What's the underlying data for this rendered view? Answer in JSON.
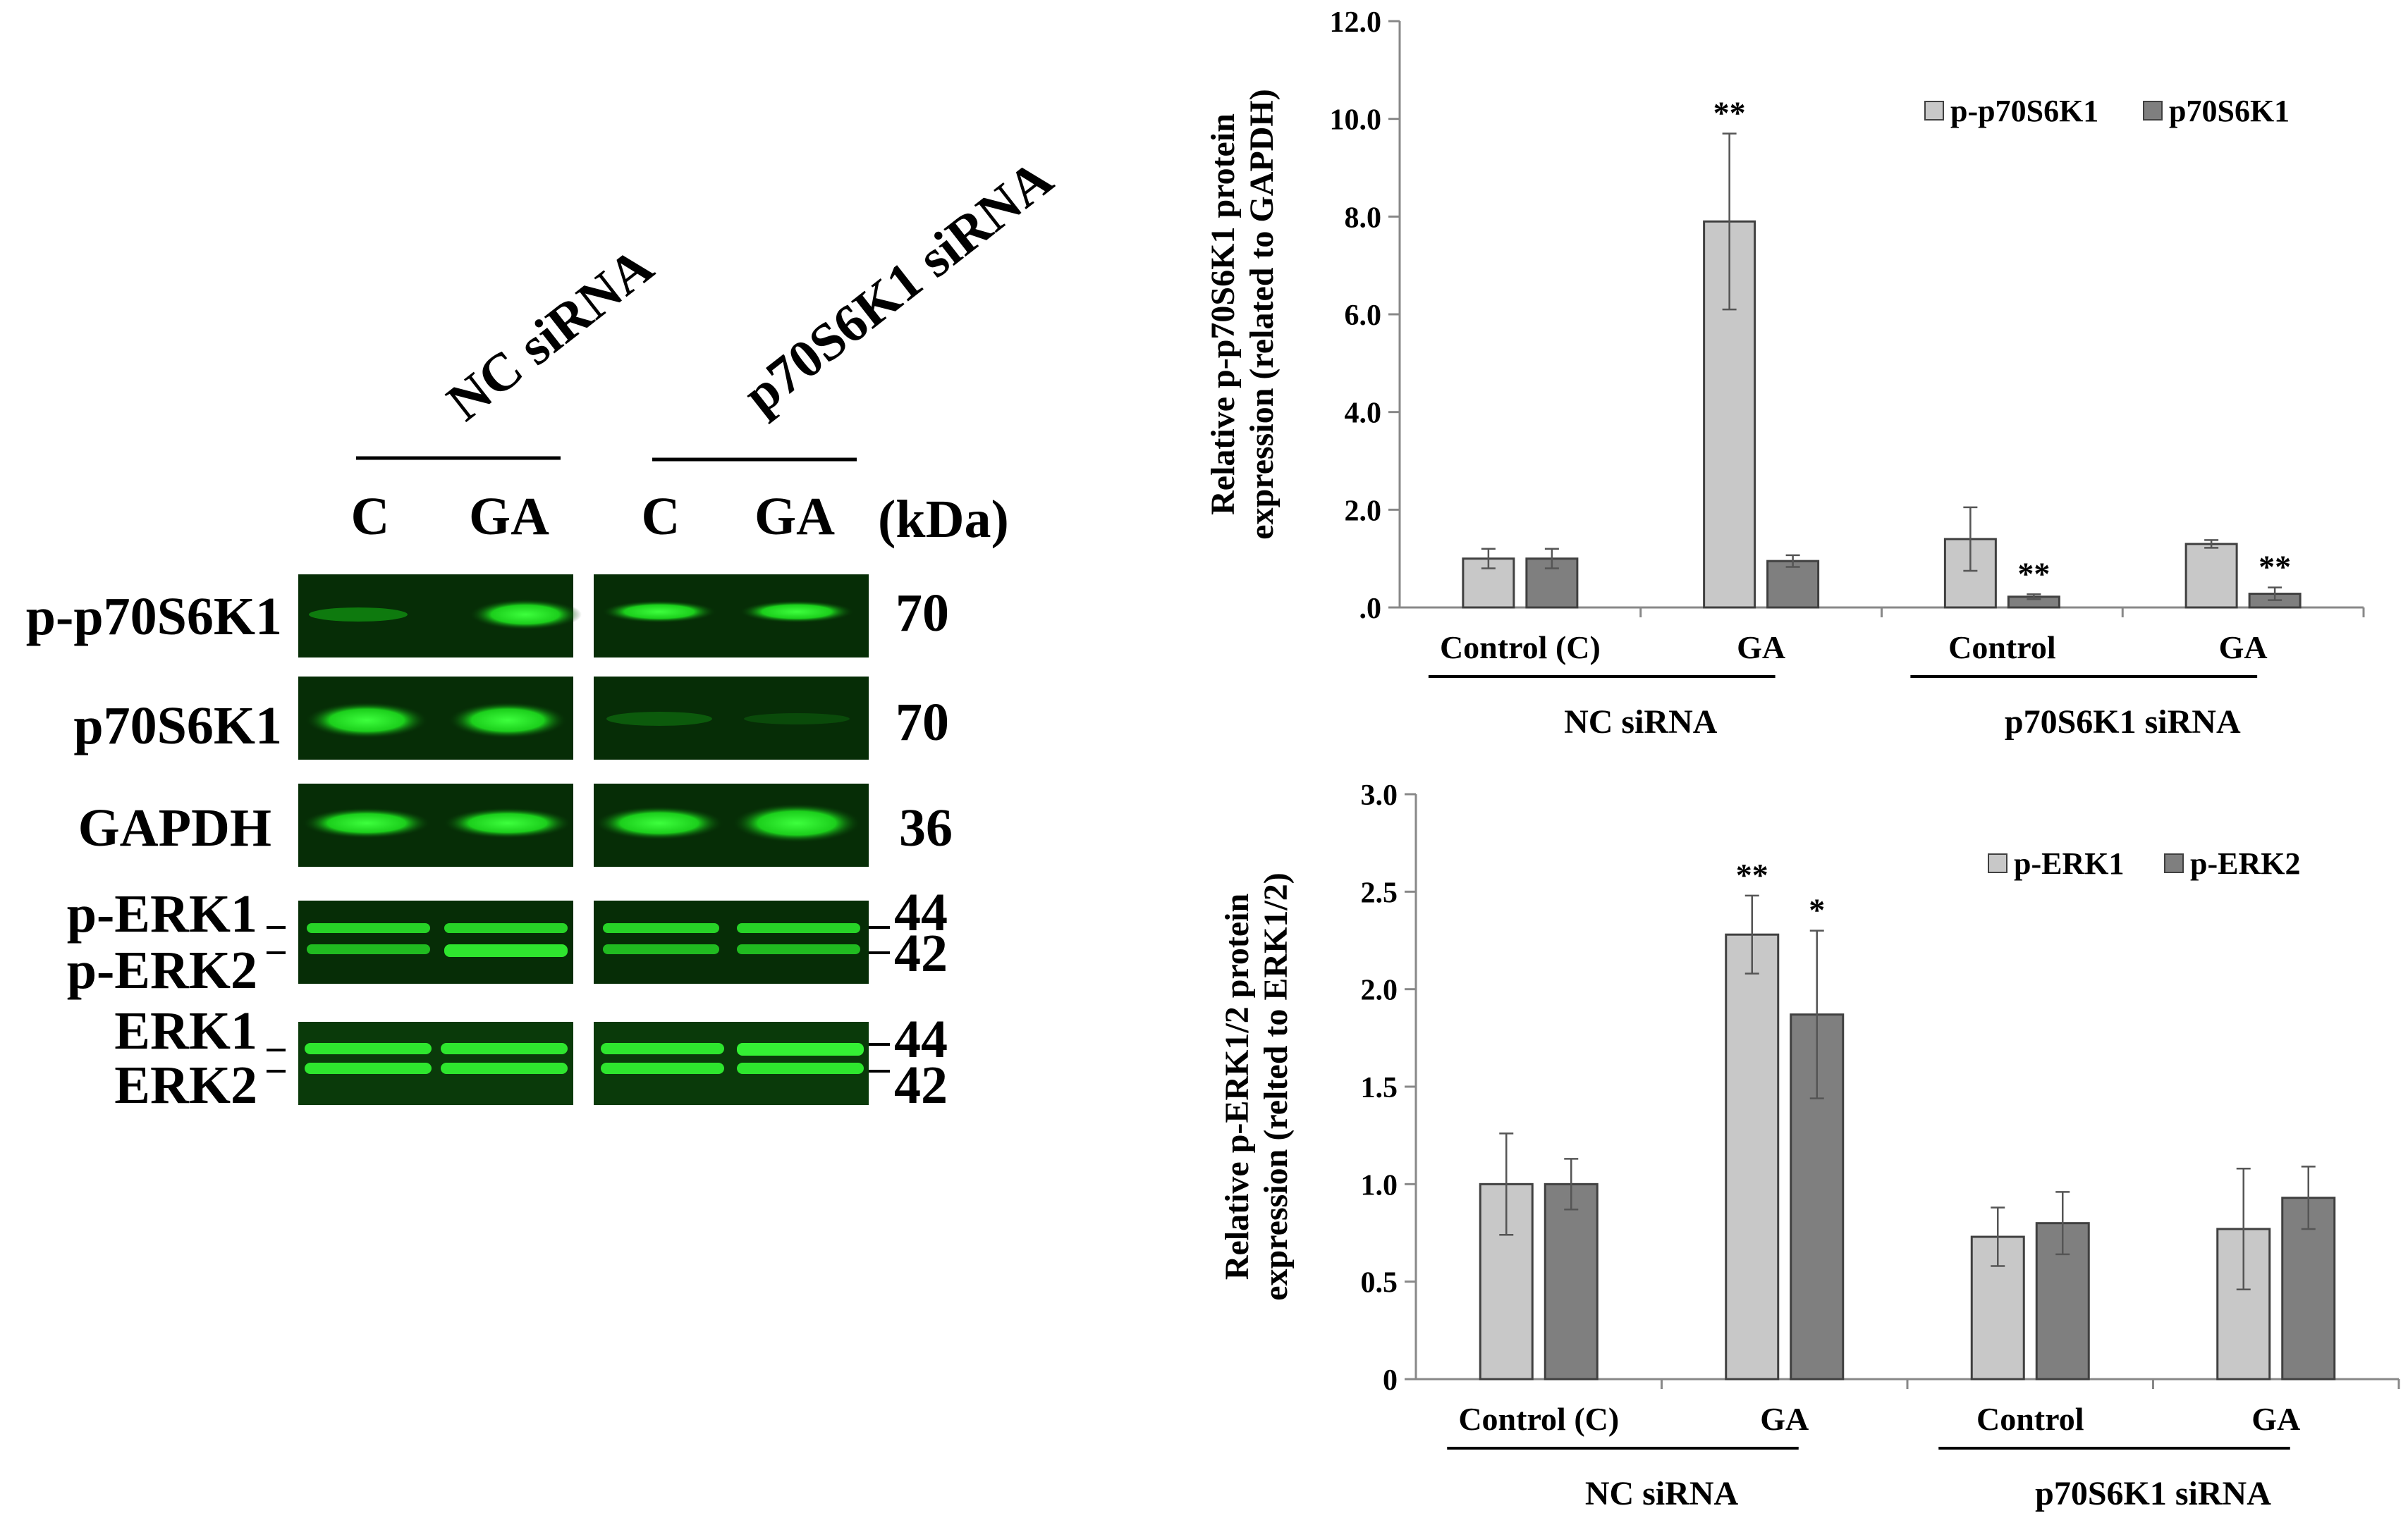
{
  "blot": {
    "group_labels": [
      "NC siRNA",
      "p70S6K1 siRNA"
    ],
    "lane_labels": [
      "C",
      "GA",
      "C",
      "GA"
    ],
    "kda_label": "(kDa)",
    "rows": [
      {
        "label": "p-p70S6K1",
        "kda": [
          "70"
        ]
      },
      {
        "label": "p70S6K1",
        "kda": [
          "70"
        ]
      },
      {
        "label": "GAPDH",
        "kda": [
          "36"
        ]
      },
      {
        "label": "p-ERK1",
        "label2": "p-ERK2",
        "kda": [
          "44",
          "42"
        ]
      },
      {
        "label": "ERK1",
        "label2": "ERK2",
        "kda": [
          "44",
          "42"
        ]
      }
    ],
    "band_color": "#1ee61e"
  },
  "chart_data": [
    {
      "type": "bar",
      "title": "",
      "ylabel_line1": "Relative p-p70S6K1 protein",
      "ylabel_line2": "expression (related to GAPDH)",
      "categories": [
        "Control (C)",
        "GA",
        "Control",
        "GA"
      ],
      "groups": [
        "NC siRNA",
        "p70S6K1 siRNA"
      ],
      "ylim": [
        0,
        12
      ],
      "yticks": [
        ".0",
        "2.0",
        "4.0",
        "6.0",
        "8.0",
        "10.0",
        "12.0"
      ],
      "series": [
        {
          "name": "p-p70S6K1",
          "color": "#c8c8c8",
          "values": [
            1.0,
            7.9,
            1.4,
            1.3
          ],
          "errors": [
            0.2,
            1.8,
            0.65,
            0.08
          ],
          "annotations": [
            "",
            "**",
            "",
            ""
          ]
        },
        {
          "name": "p70S6K1",
          "color": "#7f7f7f",
          "values": [
            1.0,
            0.95,
            0.22,
            0.28
          ],
          "errors": [
            0.2,
            0.12,
            0.05,
            0.13
          ],
          "annotations": [
            "",
            "",
            "**",
            "**"
          ]
        }
      ],
      "legend": "top-right"
    },
    {
      "type": "bar",
      "title": "",
      "ylabel_line1": "Relative p-ERK1/2 protein",
      "ylabel_line2": "expression (relted to ERK1/2)",
      "categories": [
        "Control (C)",
        "GA",
        "Control",
        "GA"
      ],
      "groups": [
        "NC siRNA",
        "p70S6K1 siRNA"
      ],
      "ylim": [
        0,
        3
      ],
      "yticks": [
        "0",
        "0.5",
        "1.0",
        "1.5",
        "2.0",
        "2.5",
        "3.0"
      ],
      "series": [
        {
          "name": "p-ERK1",
          "color": "#c8c8c8",
          "values": [
            1.0,
            2.28,
            0.73,
            0.77
          ],
          "errors": [
            0.26,
            0.2,
            0.15,
            0.31
          ],
          "annotations": [
            "",
            "**",
            "",
            ""
          ]
        },
        {
          "name": "p-ERK2",
          "color": "#7f7f7f",
          "values": [
            1.0,
            1.87,
            0.8,
            0.93
          ],
          "errors": [
            0.13,
            0.43,
            0.16,
            0.16
          ],
          "annotations": [
            "",
            "*",
            "",
            ""
          ]
        }
      ],
      "legend": "top-right"
    }
  ]
}
